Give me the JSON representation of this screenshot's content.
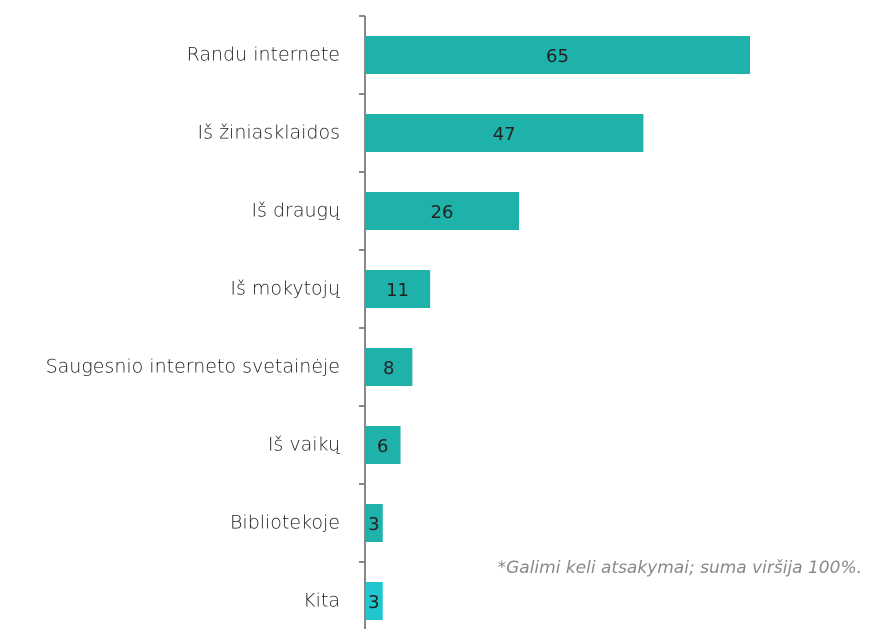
{
  "chart_data": {
    "type": "barh",
    "categories": [
      "Randu internete",
      "Iš žiniasklaidos",
      "Iš draugų",
      "Iš mokytojų",
      "Saugesnio interneto svetainėje",
      "Iš vaikų",
      "Bibliotekoje",
      "Kita"
    ],
    "values": [
      65,
      47,
      26,
      11,
      8,
      6,
      3,
      3
    ],
    "colors": [
      "#1fb2aa",
      "#1fb2aa",
      "#1fb2aa",
      "#1fb2aa",
      "#1fb2aa",
      "#1fb2aa",
      "#1fb2aa",
      "#22c6cf"
    ],
    "xlim": [
      0,
      65
    ],
    "annotation": "*Galimi keli atsakymai; suma viršija 100%."
  }
}
